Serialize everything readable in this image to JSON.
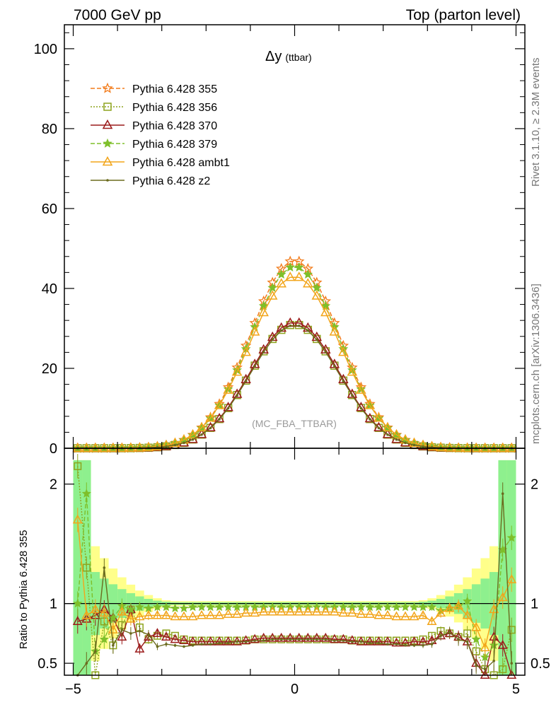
{
  "header": {
    "left": "7000 GeV pp",
    "right": "Top (parton level)"
  },
  "side": {
    "top": "Rivet 3.1.10, ≥ 2.3M events",
    "bottom": "mcplots.cern.ch [arXiv:1306.3436]"
  },
  "plot": {
    "title_main": "Δy",
    "title_sub": "(ttbar)",
    "watermark": "(MC_FBA_TTBAR)",
    "ratio_ylabel": "Ratio to Pythia 6.428 355"
  },
  "chart_data": {
    "type": "line",
    "x": [
      -4.9,
      -4.7,
      -4.5,
      -4.3,
      -4.1,
      -3.9,
      -3.7,
      -3.5,
      -3.3,
      -3.1,
      -2.9,
      -2.7,
      -2.5,
      -2.3,
      -2.1,
      -1.9,
      -1.7,
      -1.5,
      -1.3,
      -1.1,
      -0.9,
      -0.7,
      -0.5,
      -0.3,
      -0.1,
      0.1,
      0.3,
      0.5,
      0.7,
      0.9,
      1.1,
      1.3,
      1.5,
      1.7,
      1.9,
      2.1,
      2.3,
      2.5,
      2.7,
      2.9,
      3.1,
      3.3,
      3.5,
      3.7,
      3.9,
      4.1,
      4.3,
      4.5,
      4.7,
      4.9
    ],
    "xlim": [
      -5.2,
      5.2
    ],
    "xticks": [
      "−5",
      "0",
      "5"
    ],
    "ylim_main": [
      0,
      106
    ],
    "yticks_main": [
      "0",
      "20",
      "40",
      "60",
      "80",
      "100"
    ],
    "ylim_ratio": [
      0.4,
      2.3
    ],
    "yticks_ratio": [
      "0.5",
      "1",
      "2"
    ],
    "series": [
      {
        "name": "Pythia 6.428 355",
        "color": "#f27b1a",
        "dash": "6,3",
        "marker": "star-open",
        "peak": 47.0,
        "sigma": 1.0,
        "ratio": []
      },
      {
        "name": "Pythia 6.428 356",
        "color": "#8ea41e",
        "dash": "2,2",
        "marker": "square-open",
        "peak": 31.0,
        "sigma": 1.0,
        "ratio": [
          2.15,
          1.3,
          0.35,
          0.85,
          0.65,
          0.82,
          0.95,
          0.8,
          0.7,
          0.73,
          0.75,
          0.73,
          0.7,
          0.69,
          0.69,
          0.69,
          0.69,
          0.69,
          0.69,
          0.69,
          0.7,
          0.7,
          0.7,
          0.7,
          0.7,
          0.7,
          0.7,
          0.7,
          0.7,
          0.7,
          0.7,
          0.69,
          0.69,
          0.69,
          0.69,
          0.69,
          0.69,
          0.69,
          0.69,
          0.7,
          0.73,
          0.77,
          0.75,
          0.72,
          0.75,
          0.6,
          0.45,
          0.4,
          0.45,
          0.78
        ]
      },
      {
        "name": "Pythia 6.428 370",
        "color": "#9b1b1b",
        "dash": "",
        "marker": "triangle-open",
        "peak": 31.5,
        "sigma": 1.0,
        "ratio": [
          0.85,
          0.87,
          0.9,
          0.95,
          0.88,
          0.72,
          0.95,
          0.62,
          0.72,
          0.75,
          0.72,
          0.7,
          0.69,
          0.68,
          0.68,
          0.68,
          0.68,
          0.68,
          0.68,
          0.69,
          0.7,
          0.71,
          0.71,
          0.71,
          0.71,
          0.71,
          0.71,
          0.71,
          0.71,
          0.7,
          0.7,
          0.69,
          0.68,
          0.68,
          0.68,
          0.68,
          0.67,
          0.67,
          0.68,
          0.68,
          0.69,
          0.73,
          0.75,
          0.72,
          0.68,
          0.5,
          0.38,
          0.72,
          0.65,
          0.35
        ]
      },
      {
        "name": "Pythia 6.428 379",
        "color": "#7ebf2a",
        "dash": "6,3",
        "marker": "star-filled",
        "peak": 45.5,
        "sigma": 1.0,
        "ratio": [
          1.0,
          1.92,
          0.6,
          0.7,
          0.88,
          0.98,
          0.95,
          0.97,
          0.96,
          0.97,
          0.97,
          0.96,
          0.96,
          0.97,
          0.97,
          0.97,
          0.97,
          0.97,
          0.97,
          0.97,
          0.97,
          0.97,
          0.97,
          0.97,
          0.97,
          0.97,
          0.97,
          0.97,
          0.97,
          0.97,
          0.97,
          0.97,
          0.97,
          0.97,
          0.97,
          0.97,
          0.97,
          0.97,
          0.97,
          0.97,
          0.97,
          0.94,
          0.96,
          0.98,
          1.02,
          0.7,
          0.55,
          0.65,
          1.45,
          1.55
        ]
      },
      {
        "name": "Pythia 6.428 ambt1",
        "color": "#f2a51a",
        "dash": "",
        "marker": "triangle-open",
        "peak": 43.0,
        "sigma": 1.02,
        "ratio": [
          1.7,
          0.9,
          0.95,
          0.92,
          0.78,
          0.93,
          0.87,
          0.89,
          0.9,
          0.9,
          0.9,
          0.89,
          0.89,
          0.89,
          0.9,
          0.9,
          0.9,
          0.91,
          0.91,
          0.92,
          0.92,
          0.93,
          0.93,
          0.93,
          0.93,
          0.93,
          0.93,
          0.93,
          0.93,
          0.93,
          0.92,
          0.92,
          0.91,
          0.91,
          0.9,
          0.9,
          0.89,
          0.89,
          0.89,
          0.9,
          0.85,
          0.92,
          0.96,
          0.98,
          0.9,
          0.8,
          0.63,
          0.95,
          1.05,
          1.2
        ]
      },
      {
        "name": "Pythia 6.428 z2",
        "color": "#6b6b1e",
        "dash": "",
        "marker": "dot",
        "peak": 30.8,
        "sigma": 1.0,
        "ratio": [
          0.3,
          0.5,
          0.6,
          1.3,
          0.65,
          0.78,
          0.75,
          0.77,
          0.74,
          0.64,
          0.66,
          0.65,
          0.64,
          0.65,
          0.66,
          0.66,
          0.67,
          0.67,
          0.68,
          0.68,
          0.69,
          0.69,
          0.7,
          0.7,
          0.7,
          0.7,
          0.7,
          0.7,
          0.7,
          0.69,
          0.69,
          0.68,
          0.68,
          0.67,
          0.67,
          0.66,
          0.66,
          0.65,
          0.65,
          0.65,
          0.66,
          0.73,
          0.76,
          0.7,
          0.68,
          0.48,
          0.45,
          0.52,
          1.92,
          0.5
        ]
      }
    ]
  }
}
